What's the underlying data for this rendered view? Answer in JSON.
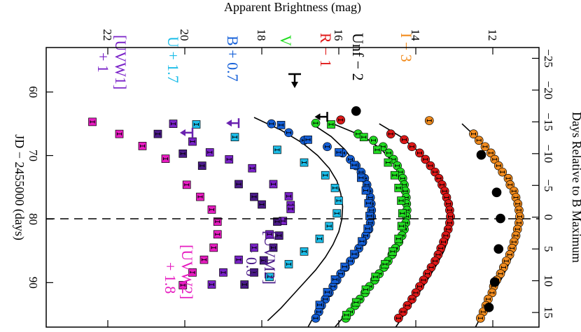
{
  "chart_data": {
    "type": "scatter",
    "title": "",
    "xlabel": "JD − 2455000 (days)",
    "ylabel": "Apparent Brightness (mag)",
    "x2label": "Days Relative to B Maximum",
    "xlim": [
      53,
      97
    ],
    "ylim": [
      23.6,
      10.8
    ],
    "x_ticks": [
      "60",
      "70",
      "80",
      "90"
    ],
    "y_ticks": [
      "22",
      "20",
      "18",
      "16",
      "14",
      "12"
    ],
    "x2_ticks": [
      "−25",
      "−20",
      "−15",
      "−10",
      "−5",
      "0",
      "5",
      "10",
      "15"
    ],
    "b_max_jd": 79.7,
    "series": [
      {
        "name": "I − 3",
        "color": "#f28c1e",
        "marker": "circle",
        "x": [
          64.5,
          66.6,
          67.6,
          68.6,
          69.6,
          70.6,
          71.6,
          72.6,
          73.6,
          74.6,
          75.6,
          76.6,
          77.6,
          78.6,
          79.6,
          80.6,
          81.6,
          82.6,
          83.6,
          84.6,
          85.6,
          86.6,
          87.6,
          88.6,
          89.6,
          90.6,
          91.6,
          92.6,
          93.6,
          94.6,
          95.6
        ],
        "y": [
          13.65,
          12.5,
          12.36,
          12.2,
          12.05,
          11.95,
          11.85,
          11.75,
          11.6,
          11.55,
          11.45,
          11.4,
          11.35,
          11.32,
          11.3,
          11.32,
          11.36,
          11.4,
          11.45,
          11.5,
          11.56,
          11.65,
          11.72,
          11.8,
          11.9,
          11.98,
          12.02,
          12.12,
          12.18,
          12.25,
          12.32
        ]
      },
      {
        "name": "R − 1",
        "color": "#e01818",
        "marker": "circle",
        "x": [
          64.4,
          66.6,
          67.5,
          68.6,
          69.6,
          70.6,
          71.6,
          72.6,
          73.6,
          74.6,
          75.6,
          76.6,
          77.6,
          78.6,
          79.6,
          80.6,
          81.6,
          82.6,
          83.6,
          84.6,
          85.6,
          86.6,
          87.6,
          88.6,
          89.6,
          90.6,
          91.6,
          92.6,
          93.6,
          94.6,
          95.6
        ],
        "y": [
          15.95,
          14.65,
          14.3,
          14.1,
          13.9,
          13.75,
          13.62,
          13.5,
          13.4,
          13.32,
          13.25,
          13.2,
          13.15,
          13.12,
          13.1,
          13.12,
          13.16,
          13.22,
          13.28,
          13.35,
          13.42,
          13.5,
          13.6,
          13.7,
          13.8,
          13.9,
          14.0,
          14.1,
          14.22,
          14.33,
          14.45
        ]
      },
      {
        "name": "V",
        "color": "#22dd22",
        "marker": "circle",
        "x": [
          64.9,
          66.6,
          67.6,
          68.6,
          69.6,
          70.6,
          71.6,
          72.6,
          73.6,
          74.6,
          75.6,
          76.6,
          77.6,
          78.6,
          79.6,
          80.6,
          81.6,
          82.6,
          83.6,
          84.6,
          85.6,
          86.6,
          87.6,
          88.6,
          89.6,
          90.6,
          91.6,
          92.6,
          93.6,
          94.6,
          95.6
        ],
        "y": [
          16.6,
          15.5,
          15.1,
          14.85,
          14.7,
          14.58,
          14.48,
          14.4,
          14.34,
          14.3,
          14.27,
          14.25,
          14.24,
          14.23,
          14.24,
          14.26,
          14.3,
          14.36,
          14.44,
          14.53,
          14.62,
          14.72,
          14.83,
          14.95,
          15.07,
          15.2,
          15.32,
          15.45,
          15.58,
          15.7,
          15.82
        ]
      },
      {
        "name": "V (squares)",
        "color": "#22dd22",
        "marker": "square",
        "x": [
          65.1,
          67.1,
          69.1,
          71.1,
          73.1,
          75.1,
          77.1,
          79.1,
          81.1,
          83.1,
          85.1,
          87.1,
          89.1,
          91.1,
          93.1,
          95.1
        ],
        "y": [
          16.2,
          15.35,
          15.0,
          14.72,
          14.55,
          14.45,
          14.38,
          14.35,
          14.37,
          14.45,
          14.6,
          14.8,
          15.05,
          15.3,
          15.55,
          15.8
        ]
      },
      {
        "name": "B + 0.7",
        "color": "#1560d8",
        "marker": "circle",
        "x": [
          65.0,
          66.4,
          67.6,
          68.6,
          69.6,
          70.6,
          71.6,
          72.6,
          73.6,
          74.6,
          75.6,
          76.6,
          77.6,
          78.6,
          79.6,
          80.6,
          81.6,
          82.6,
          83.6,
          84.6,
          85.6,
          86.6,
          87.6,
          88.6,
          89.6,
          90.6,
          91.6,
          92.6,
          93.6,
          94.6,
          95.6
        ],
        "y": [
          17.75,
          17.3,
          16.9,
          16.3,
          15.9,
          15.7,
          15.55,
          15.42,
          15.33,
          15.27,
          15.22,
          15.18,
          15.16,
          15.15,
          15.15,
          15.18,
          15.22,
          15.3,
          15.38,
          15.48,
          15.58,
          15.7,
          15.83,
          15.95,
          16.05,
          16.15,
          16.25,
          16.35,
          16.45,
          16.52,
          16.6
        ]
      },
      {
        "name": "B + 0.7 (squares)",
        "color": "#1560d8",
        "marker": "square",
        "x": [
          65.2,
          67.5,
          69.5,
          71.5,
          73.5,
          75.5,
          77.5,
          79.5,
          81.5,
          83.5,
          85.5,
          87.5,
          89.5,
          91.5,
          93.5
        ],
        "y": [
          17.5,
          16.8,
          16.0,
          15.6,
          15.42,
          15.3,
          15.23,
          15.2,
          15.25,
          15.4,
          15.6,
          15.85,
          16.1,
          16.3,
          16.5
        ]
      },
      {
        "name": "U + 1.7",
        "color": "#1cbde8",
        "marker": "square",
        "x": [
          65.1,
          67.1,
          69.1,
          71.1,
          73.1,
          75.1,
          77.1,
          79.1,
          81.1,
          83.1,
          85.1,
          87.1,
          89.1
        ],
        "y": [
          19.7,
          18.7,
          17.6,
          16.9,
          16.35,
          16.1,
          16.0,
          16.05,
          16.25,
          16.5,
          16.9,
          17.3,
          17.8
        ]
      },
      {
        "name": "[UVW1] + 1",
        "color": "#7a22c8",
        "marker": "square",
        "x": [
          65.0,
          67.8,
          69.5,
          70.6,
          72.0,
          74.5,
          76.4,
          77.8,
          78.4,
          80.3,
          82.4,
          84.5,
          86.4,
          88.4,
          90.3
        ],
        "y": [
          20.3,
          19.8,
          19.35,
          18.85,
          18.25,
          17.7,
          17.3,
          17.25,
          17.25,
          17.45,
          17.8,
          18.2,
          18.6,
          19.0,
          19.3
        ]
      },
      {
        "name": "[UVM2] − 0.6",
        "color": "#4a1a88",
        "marker": "square",
        "x": [
          66.6,
          69.7,
          71.6,
          74.5,
          76.5,
          77.7,
          80.4,
          82.6,
          84.5,
          86.5,
          88.4,
          90.3
        ],
        "y": [
          20.7,
          20.05,
          19.55,
          18.6,
          18.2,
          18.0,
          17.6,
          17.55,
          17.7,
          17.95,
          18.2,
          18.45
        ]
      },
      {
        "name": "[UVW2] + 1.8",
        "color": "#e61cc0",
        "marker": "square",
        "x": [
          64.7,
          66.6,
          68.5,
          70.5,
          74.6,
          76.5,
          78.5,
          80.4,
          82.4,
          84.5,
          86.4,
          88.4,
          90.4
        ],
        "y": [
          22.4,
          21.7,
          21.1,
          20.5,
          19.95,
          19.6,
          19.3,
          19.15,
          19.15,
          19.25,
          19.5,
          19.8,
          20.05
        ]
      },
      {
        "name": "Unf − 2",
        "color": "#000000",
        "marker": "circle",
        "x": [
          63.0,
          69.9,
          75.8,
          79.9,
          84.7,
          89.9,
          93.9
        ],
        "y": [
          15.55,
          12.3,
          11.9,
          11.8,
          11.85,
          11.95,
          12.1
        ]
      }
    ],
    "fit_curves": [
      {
        "name": "I − 3 fit",
        "x": [
          65,
          67,
          69,
          71,
          73,
          75,
          77,
          79,
          81,
          83,
          85,
          87,
          89,
          91,
          93,
          95,
          97
        ],
        "y": [
          12.8,
          12.45,
          12.15,
          11.9,
          11.7,
          11.52,
          11.4,
          11.32,
          11.3,
          11.34,
          11.44,
          11.58,
          11.74,
          11.92,
          12.1,
          12.28,
          12.45
        ]
      },
      {
        "name": "R − 1 fit",
        "x": [
          65,
          67,
          69,
          71,
          73,
          75,
          77,
          79,
          81,
          83,
          85,
          87,
          89,
          91,
          93,
          95,
          97
        ],
        "y": [
          14.95,
          14.4,
          14.0,
          13.7,
          13.45,
          13.28,
          13.17,
          13.11,
          13.1,
          13.15,
          13.27,
          13.44,
          13.64,
          13.85,
          14.07,
          14.3,
          14.52
        ]
      },
      {
        "name": "V fit",
        "x": [
          65,
          67,
          69,
          71,
          73,
          75,
          77,
          79,
          81,
          83,
          85,
          87,
          89,
          91,
          93,
          95,
          97
        ],
        "y": [
          16.15,
          15.35,
          14.9,
          14.6,
          14.42,
          14.32,
          14.26,
          14.24,
          14.25,
          14.33,
          14.48,
          14.7,
          14.98,
          15.25,
          15.55,
          15.82,
          16.1
        ]
      },
      {
        "name": "B + 0.7 fit",
        "x": [
          65,
          67,
          69,
          71,
          73,
          75,
          77,
          79,
          81,
          83,
          85,
          87,
          89,
          91,
          93,
          95,
          97
        ],
        "y": [
          16.7,
          16.2,
          15.85,
          15.6,
          15.42,
          15.28,
          15.19,
          15.15,
          15.17,
          15.3,
          15.5,
          15.73,
          15.97,
          16.2,
          16.42,
          16.62,
          16.8
        ]
      },
      {
        "name": "U + 1.7 fit",
        "x": [
          64,
          66,
          68,
          70,
          72,
          74,
          76,
          78,
          80,
          82,
          84,
          86,
          88,
          90,
          92,
          94,
          96
        ],
        "y": [
          18.2,
          17.5,
          16.95,
          16.55,
          16.25,
          16.05,
          15.95,
          15.9,
          15.92,
          16.0,
          16.15,
          16.35,
          16.6,
          16.9,
          17.2,
          17.5,
          17.85
        ]
      }
    ],
    "upper_limits": [
      {
        "series": "V",
        "x": 63.9,
        "y": 16.3,
        "color": "#000000"
      },
      {
        "series": "B + 0.7",
        "x": 64.9,
        "y": 18.6,
        "color": "#6a22b0"
      },
      {
        "series": "[UVW1] + 1",
        "x": 66.4,
        "y": 19.8,
        "color": "#6a22b0"
      }
    ],
    "legend_labels": [
      {
        "text": "I − 3",
        "color": "#f28c1e"
      },
      {
        "text": "Unf − 2",
        "color": "#000000"
      },
      {
        "text": "R − 1",
        "color": "#e01818"
      },
      {
        "text": "V",
        "color": "#22dd22"
      },
      {
        "text": "B + 0.7",
        "color": "#1560d8"
      },
      {
        "text": "U + 1.7",
        "color": "#1cbde8"
      },
      {
        "text": "[UVW1]",
        "color": "#7a22c8"
      },
      {
        "text": "+ 1",
        "color": "#7a22c8"
      },
      {
        "text": "[UVM2]",
        "color": "#4a1a88"
      },
      {
        "text": "− 0.6",
        "color": "#4a1a88"
      },
      {
        "text": "[UVW2]",
        "color": "#e61cc0"
      },
      {
        "text": "+ 1.8",
        "color": "#e61cc0"
      }
    ]
  }
}
